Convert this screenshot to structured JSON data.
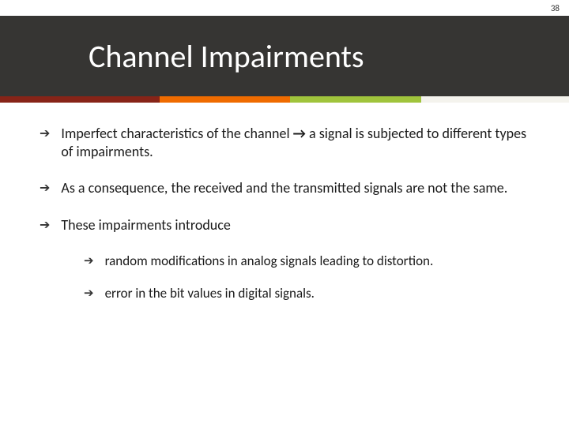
{
  "page_number": "38",
  "title": "Channel Impairments",
  "colors": {
    "title_bg": "#363533",
    "title_text": "#ffffff",
    "body_text": "#1a1a1a",
    "strip": [
      {
        "color": "#872418",
        "width": 28
      },
      {
        "color": "#ef6b00",
        "width": 23
      },
      {
        "color": "#a0c43c",
        "width": 23
      },
      {
        "color": "#f4f3ed",
        "width": 26
      }
    ]
  },
  "typography": {
    "title_fontsize": 40,
    "body_fontsize": 18,
    "sub_fontsize": 17,
    "bullet_glyph": "➔",
    "inline_arrow_glyph": "→"
  },
  "bullets": [
    {
      "level": 1,
      "pre": "Imperfect characteristics of the channel ",
      "arrow": "→",
      "post": " a signal is subjected to different types of impairments."
    },
    {
      "level": 1,
      "text": "As a consequence, the received and the transmitted signals are not the same."
    },
    {
      "level": 1,
      "text": "These impairments introduce"
    },
    {
      "level": 2,
      "text": "random modifications in analog signals leading to distortion."
    },
    {
      "level": 2,
      "text": "error in the bit values in digital signals."
    }
  ]
}
